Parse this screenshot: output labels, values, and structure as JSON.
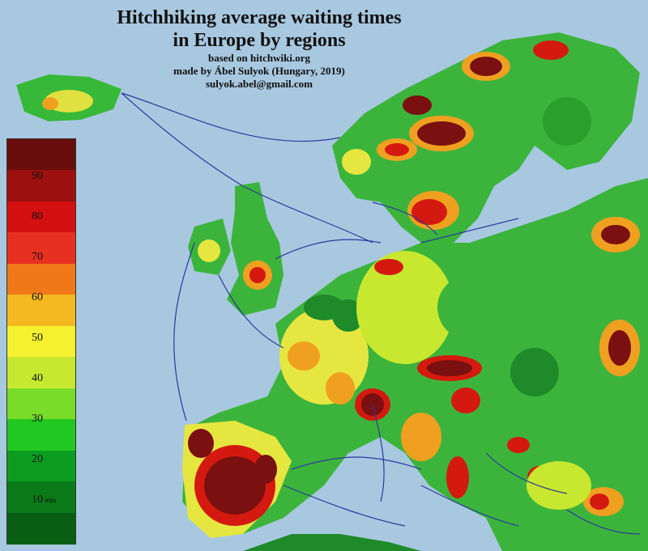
{
  "title": {
    "line1": "Hitchhiking average waiting times",
    "line2": "in Europe by regions",
    "source": "based on hitchwiki.org",
    "author": "made by Ábel Sulyok (Hungary, 2019)",
    "email": "sulyok.abel@gmail.com"
  },
  "legend": {
    "ticks": [
      "90",
      "80",
      "70",
      "60",
      "50",
      "40",
      "30",
      "20",
      "10"
    ],
    "unit": "min",
    "colors": [
      "#6a0d0d",
      "#9c1010",
      "#d41010",
      "#e83020",
      "#f07818",
      "#f4b820",
      "#f5f030",
      "#c8e830",
      "#78dc28",
      "#22c822",
      "#0c9c20",
      "#0a7a18",
      "#0a5e14"
    ]
  },
  "map_colors": {
    "sea": "#a8c8e0",
    "land_green": "#3cb43c",
    "dark_green": "#1f8a2a",
    "yellow": "#e6e640",
    "orange": "#f0a020",
    "red": "#d41a10",
    "dark_red": "#7a1010",
    "route_lines": "#2a3a9a"
  }
}
